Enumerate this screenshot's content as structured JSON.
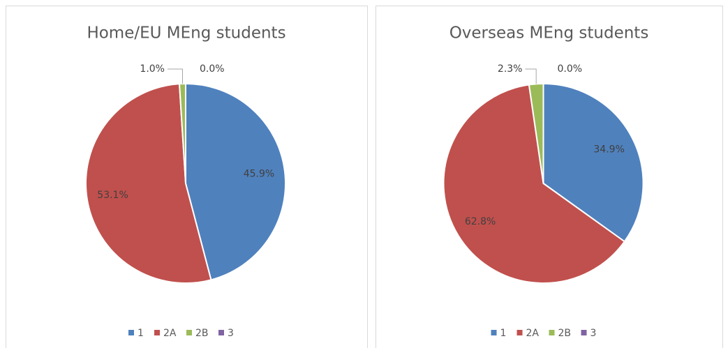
{
  "chart_data": [
    {
      "type": "pie",
      "title": "Home/EU MEng students",
      "categories": [
        "1",
        "2A",
        "2B",
        "3"
      ],
      "values": [
        45.9,
        53.1,
        1.0,
        0.0
      ],
      "value_labels": [
        "45.9%",
        "53.1%",
        "1.0%",
        "0.0%"
      ],
      "colors": [
        "#4f81bd",
        "#c0504d",
        "#9bbb59",
        "#8064a2"
      ],
      "legend": "bottom"
    },
    {
      "type": "pie",
      "title": "Overseas MEng students",
      "categories": [
        "1",
        "2A",
        "2B",
        "3"
      ],
      "values": [
        34.9,
        62.8,
        2.3,
        0.0
      ],
      "value_labels": [
        "34.9%",
        "62.8%",
        "2.3%",
        "0.0%"
      ],
      "colors": [
        "#4f81bd",
        "#c0504d",
        "#9bbb59",
        "#8064a2"
      ],
      "legend": "bottom"
    }
  ]
}
